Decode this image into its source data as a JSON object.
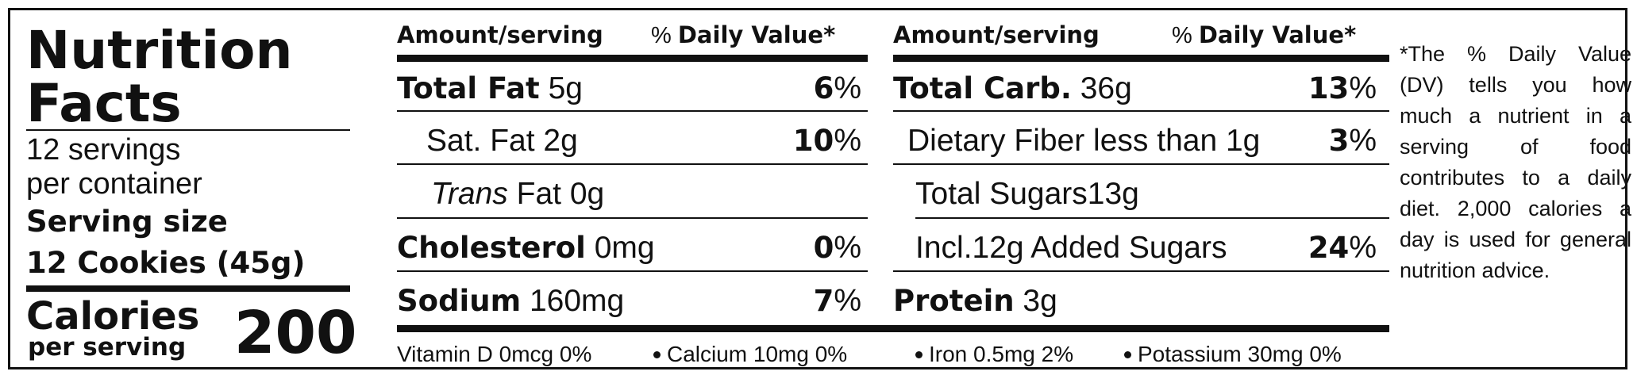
{
  "panel": {
    "title_line1": "Nutrition",
    "title_line2": "Facts",
    "servings_line1": "12 servings",
    "servings_line2": "per container",
    "serving_size_label": "Serving size",
    "serving_size_value": "12 Cookies (45g)",
    "calories_label": "Calories",
    "calories_sub": "per serving",
    "calories_value": "200"
  },
  "columns": {
    "left": {
      "header_amount": "Amount/serving",
      "header_pct": "%",
      "header_dv": "Daily Value*",
      "rows": [
        {
          "bold": "Total Fat",
          "rest": " 5g",
          "pct_bold": "6",
          "pct_sign": "%"
        },
        {
          "bold": "",
          "rest": "Sat. Fat 2g",
          "pct_bold": "10",
          "pct_sign": "%"
        },
        {
          "italic": "Trans",
          "rest": " Fat 0g",
          "pct_bold": "",
          "pct_sign": ""
        },
        {
          "bold": "Cholesterol",
          "rest": " 0mg",
          "pct_bold": "0",
          "pct_sign": "%"
        },
        {
          "bold": "Sodium",
          "rest": " 160mg",
          "pct_bold": "7",
          "pct_sign": "%"
        }
      ]
    },
    "right": {
      "header_amount": "Amount/serving",
      "header_pct": "%",
      "header_dv": "Daily Value*",
      "rows": [
        {
          "bold": "Total Carb.",
          "rest": " 36g",
          "pct_bold": "13",
          "pct_sign": "%"
        },
        {
          "bold": "",
          "rest": "Dietary Fiber less than 1g",
          "pct_bold": "3",
          "pct_sign": "%"
        },
        {
          "bold": "",
          "rest": "Total Sugars13g",
          "pct_bold": "",
          "pct_sign": ""
        },
        {
          "bold": "",
          "rest": "Incl.12g Added Sugars",
          "pct_bold": "24",
          "pct_sign": "%"
        },
        {
          "bold": "Protein",
          "rest": " 3g",
          "pct_bold": "",
          "pct_sign": ""
        }
      ]
    }
  },
  "vitamins": {
    "vitamin_d": "Vitamin D 0mcg 0%",
    "calcium": "Calcium 10mg 0%",
    "iron": "Iron 0.5mg 2%",
    "potassium": "Potassium 30mg 0%"
  },
  "footnote": "*The % Daily Value (DV) tells you how much a nutrient in a serving of food contributes to a daily diet. 2,000 calories a day is used for general nutrition advice."
}
